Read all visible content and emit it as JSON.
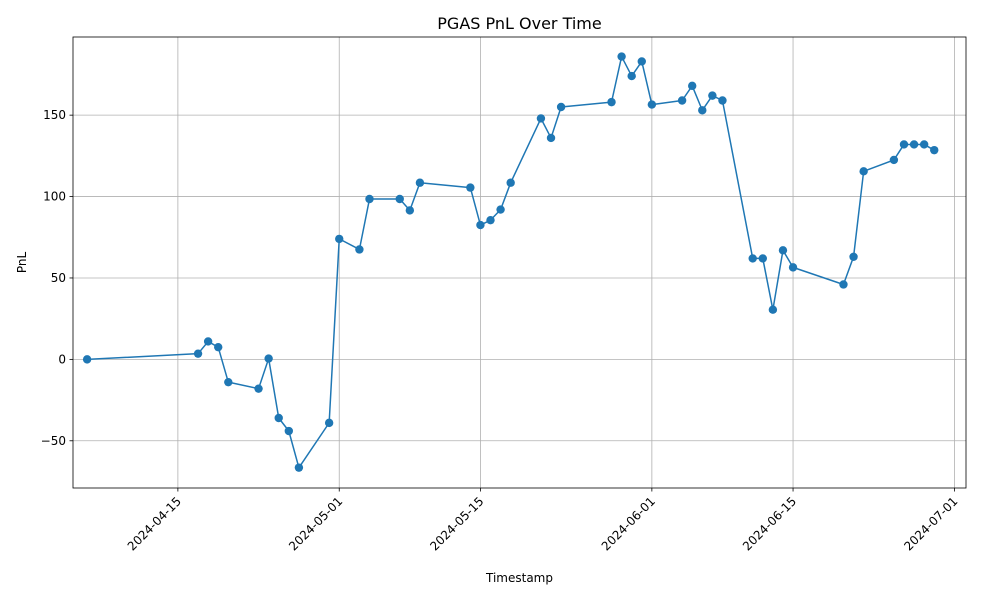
{
  "chart_data": {
    "type": "line",
    "title": "PGAS PnL Over Time",
    "xlabel": "Timestamp",
    "ylabel": "PnL",
    "x_type": "date",
    "xlim": [
      "2024-04-06",
      "2024-07-01"
    ],
    "ylim": [
      -79,
      198
    ],
    "x_ticks": [
      "2024-04-15",
      "2024-05-01",
      "2024-05-15",
      "2024-06-01",
      "2024-06-15",
      "2024-07-01"
    ],
    "y_ticks": [
      -50,
      0,
      50,
      100,
      150
    ],
    "grid": true,
    "markers": "circle",
    "series": [
      {
        "name": "",
        "color": "#1f77b4",
        "points": [
          {
            "x": "2024-04-06",
            "y": 0
          },
          {
            "x": "2024-04-17",
            "y": 3.5
          },
          {
            "x": "2024-04-18",
            "y": 11
          },
          {
            "x": "2024-04-19",
            "y": 7.5
          },
          {
            "x": "2024-04-20",
            "y": -14
          },
          {
            "x": "2024-04-23",
            "y": -18
          },
          {
            "x": "2024-04-24",
            "y": 0.5
          },
          {
            "x": "2024-04-25",
            "y": -36
          },
          {
            "x": "2024-04-26",
            "y": -44
          },
          {
            "x": "2024-04-27",
            "y": -66.5
          },
          {
            "x": "2024-04-30",
            "y": -39
          },
          {
            "x": "2024-05-01",
            "y": 74
          },
          {
            "x": "2024-05-03",
            "y": 67.5
          },
          {
            "x": "2024-05-04",
            "y": 98.5
          },
          {
            "x": "2024-05-07",
            "y": 98.5
          },
          {
            "x": "2024-05-08",
            "y": 91.5
          },
          {
            "x": "2024-05-09",
            "y": 108.5
          },
          {
            "x": "2024-05-14",
            "y": 105.5
          },
          {
            "x": "2024-05-15",
            "y": 82.5
          },
          {
            "x": "2024-05-16",
            "y": 85.5
          },
          {
            "x": "2024-05-17",
            "y": 92
          },
          {
            "x": "2024-05-18",
            "y": 108.5
          },
          {
            "x": "2024-05-21",
            "y": 148
          },
          {
            "x": "2024-05-22",
            "y": 136
          },
          {
            "x": "2024-05-23",
            "y": 155
          },
          {
            "x": "2024-05-28",
            "y": 158
          },
          {
            "x": "2024-05-29",
            "y": 186
          },
          {
            "x": "2024-05-30",
            "y": 174
          },
          {
            "x": "2024-05-31",
            "y": 183
          },
          {
            "x": "2024-06-01",
            "y": 156.5
          },
          {
            "x": "2024-06-04",
            "y": 159
          },
          {
            "x": "2024-06-05",
            "y": 168
          },
          {
            "x": "2024-06-06",
            "y": 153
          },
          {
            "x": "2024-06-07",
            "y": 162
          },
          {
            "x": "2024-06-08",
            "y": 159
          },
          {
            "x": "2024-06-11",
            "y": 62
          },
          {
            "x": "2024-06-12",
            "y": 62
          },
          {
            "x": "2024-06-13",
            "y": 30.5
          },
          {
            "x": "2024-06-14",
            "y": 67
          },
          {
            "x": "2024-06-15",
            "y": 56.5
          },
          {
            "x": "2024-06-20",
            "y": 46
          },
          {
            "x": "2024-06-21",
            "y": 63
          },
          {
            "x": "2024-06-22",
            "y": 115.5
          },
          {
            "x": "2024-06-25",
            "y": 122.5
          },
          {
            "x": "2024-06-26",
            "y": 132
          },
          {
            "x": "2024-06-27",
            "y": 132
          },
          {
            "x": "2024-06-28",
            "y": 132
          },
          {
            "x": "2024-06-29",
            "y": 128.5
          }
        ]
      }
    ]
  }
}
